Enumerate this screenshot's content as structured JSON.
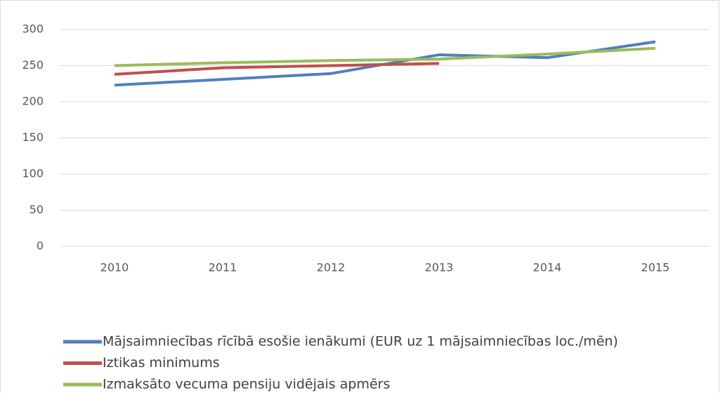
{
  "chart_data": {
    "type": "line",
    "categories": [
      "2010",
      "2011",
      "2012",
      "2013",
      "2014",
      "2015"
    ],
    "series": [
      {
        "name": "Mājsaimniecības rīcībā esošie ienākumi (EUR uz 1 mājsaimniecības loc./mēn)",
        "color": "#4f7fc0",
        "values": [
          223,
          231,
          239,
          265,
          261,
          283
        ]
      },
      {
        "name": "Iztikas minimums",
        "color": "#c0504d",
        "values": [
          238,
          247,
          250,
          253,
          null,
          null
        ]
      },
      {
        "name": "Izmaksāto vecuma pensiju vidējais apmērs",
        "color": "#9bbb59",
        "values": [
          250,
          254,
          257,
          259,
          266,
          274
        ]
      }
    ],
    "ylim": [
      0,
      300
    ],
    "yticks": [
      0,
      50,
      100,
      150,
      200,
      250,
      300
    ],
    "grid": true,
    "legend": "bottom"
  }
}
